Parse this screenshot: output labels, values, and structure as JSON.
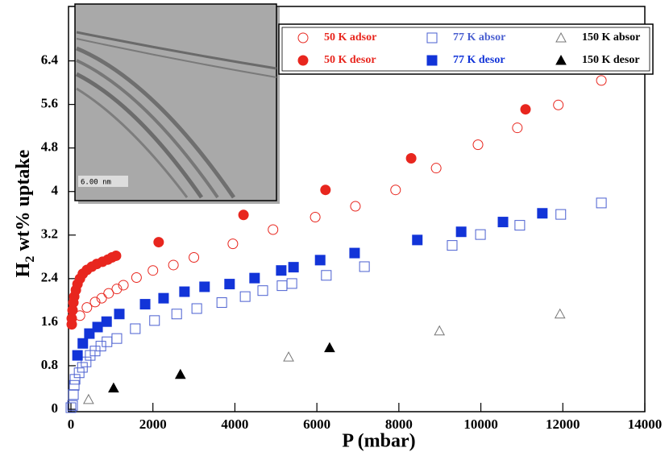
{
  "chart_data": {
    "type": "scatter",
    "xlabel": "P (mbar)",
    "ylabel": {
      "text": "H",
      "subscript": "2",
      "rest": " wt% uptake"
    },
    "annotation": "6.00 nm",
    "xlim": [
      0,
      14000
    ],
    "ylim": [
      0,
      7.4
    ],
    "xticks": [
      0,
      2000,
      4000,
      6000,
      8000,
      10000,
      12000,
      14000
    ],
    "yticks": [
      0,
      0.8,
      1.6,
      2.4,
      3.2,
      4,
      4.8,
      5.6,
      6.4
    ],
    "series": [
      {
        "name": "50 K adsor",
        "color": "#e8261e",
        "marker": "circle",
        "filled": false,
        "x": [
          220,
          390,
          590,
          750,
          920,
          1120,
          1280,
          1600,
          2000,
          2500,
          3000,
          3950,
          4930,
          5960,
          6940,
          7920,
          8910,
          9930,
          10890,
          11890,
          12940
        ],
        "values": [
          1.72,
          1.87,
          1.97,
          2.04,
          2.13,
          2.21,
          2.28,
          2.42,
          2.55,
          2.65,
          2.79,
          3.04,
          3.3,
          3.53,
          3.73,
          4.03,
          4.43,
          4.86,
          5.17,
          5.59,
          6.04
        ]
      },
      {
        "name": "50 K desor",
        "color": "#e8261e",
        "marker": "circle",
        "filled": true,
        "x": [
          20,
          20,
          40,
          60,
          80,
          120,
          160,
          220,
          290,
          390,
          510,
          630,
          770,
          900,
          1000,
          1100,
          2140,
          4210,
          6210,
          8300,
          11090
        ],
        "values": [
          1.56,
          1.67,
          1.82,
          1.96,
          2.07,
          2.19,
          2.3,
          2.4,
          2.49,
          2.56,
          2.62,
          2.67,
          2.71,
          2.75,
          2.79,
          2.82,
          3.07,
          3.57,
          4.03,
          4.61,
          5.51
        ]
      },
      {
        "name": "77 K absor",
        "color": "#4a5fd0",
        "marker": "square",
        "filled": false,
        "x": [
          0,
          40,
          60,
          80,
          100,
          200,
          280,
          370,
          470,
          590,
          730,
          880,
          1120,
          1570,
          2040,
          2580,
          3070,
          3680,
          4250,
          4680,
          5150,
          5390,
          6230,
          7160,
          9300,
          9990,
          10950,
          11950,
          12940
        ],
        "values": [
          0.03,
          0.07,
          0.27,
          0.44,
          0.55,
          0.67,
          0.77,
          0.87,
          0.99,
          1.07,
          1.16,
          1.24,
          1.3,
          1.48,
          1.63,
          1.75,
          1.85,
          1.96,
          2.07,
          2.18,
          2.27,
          2.31,
          2.46,
          2.62,
          3.01,
          3.21,
          3.38,
          3.58,
          3.79
        ]
      },
      {
        "name": "77 K desor",
        "color": "#1234d8",
        "marker": "square",
        "filled": true,
        "x": [
          160,
          290,
          450,
          650,
          870,
          1180,
          1810,
          2260,
          2770,
          3260,
          3870,
          4480,
          5130,
          5430,
          6080,
          6920,
          8450,
          9520,
          10540,
          11500
        ],
        "values": [
          0.99,
          1.21,
          1.39,
          1.51,
          1.61,
          1.75,
          1.93,
          2.04,
          2.16,
          2.25,
          2.3,
          2.41,
          2.55,
          2.61,
          2.74,
          2.87,
          3.11,
          3.26,
          3.44,
          3.6
        ]
      },
      {
        "name": "150 K absor",
        "color": "#777777",
        "marker": "triangle",
        "filled": false,
        "x": [
          430,
          5310,
          8990,
          11930
        ],
        "values": [
          0.18,
          0.96,
          1.44,
          1.75
        ]
      },
      {
        "name": "150 K desor",
        "color": "#000000",
        "marker": "triangle",
        "filled": true,
        "x": [
          1040,
          2670,
          6310
        ],
        "values": [
          0.39,
          0.64,
          1.13
        ]
      }
    ]
  }
}
